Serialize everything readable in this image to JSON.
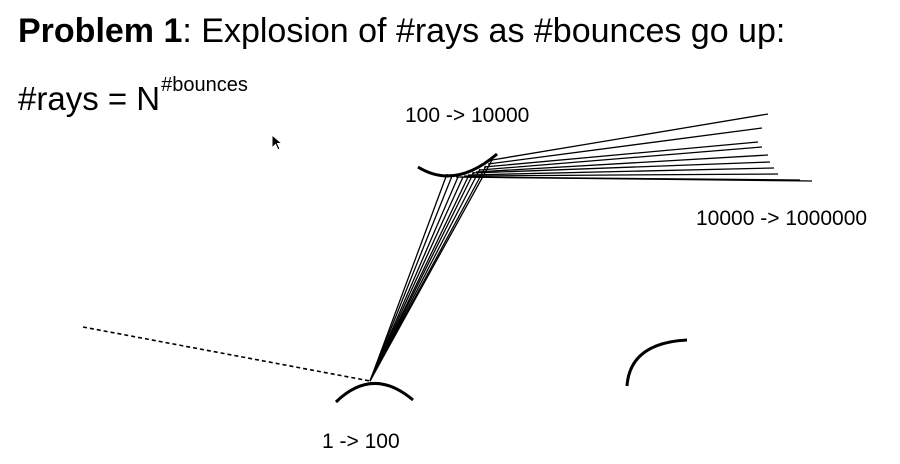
{
  "slide": {
    "title_bold": "Problem 1",
    "title_rest": ": Explosion of #rays as #bounces go up:",
    "formula_base": "#rays = N",
    "formula_exponent": "#bounces"
  },
  "labels": {
    "first_bounce": "1 -> 100",
    "second_bounce": "100 -> 10000",
    "third_bounce": "10000 -> 1000000"
  },
  "icons": {
    "cursor": "mouse-pointer-icon"
  },
  "colors": {
    "ink": "#000000",
    "background": "#ffffff"
  }
}
